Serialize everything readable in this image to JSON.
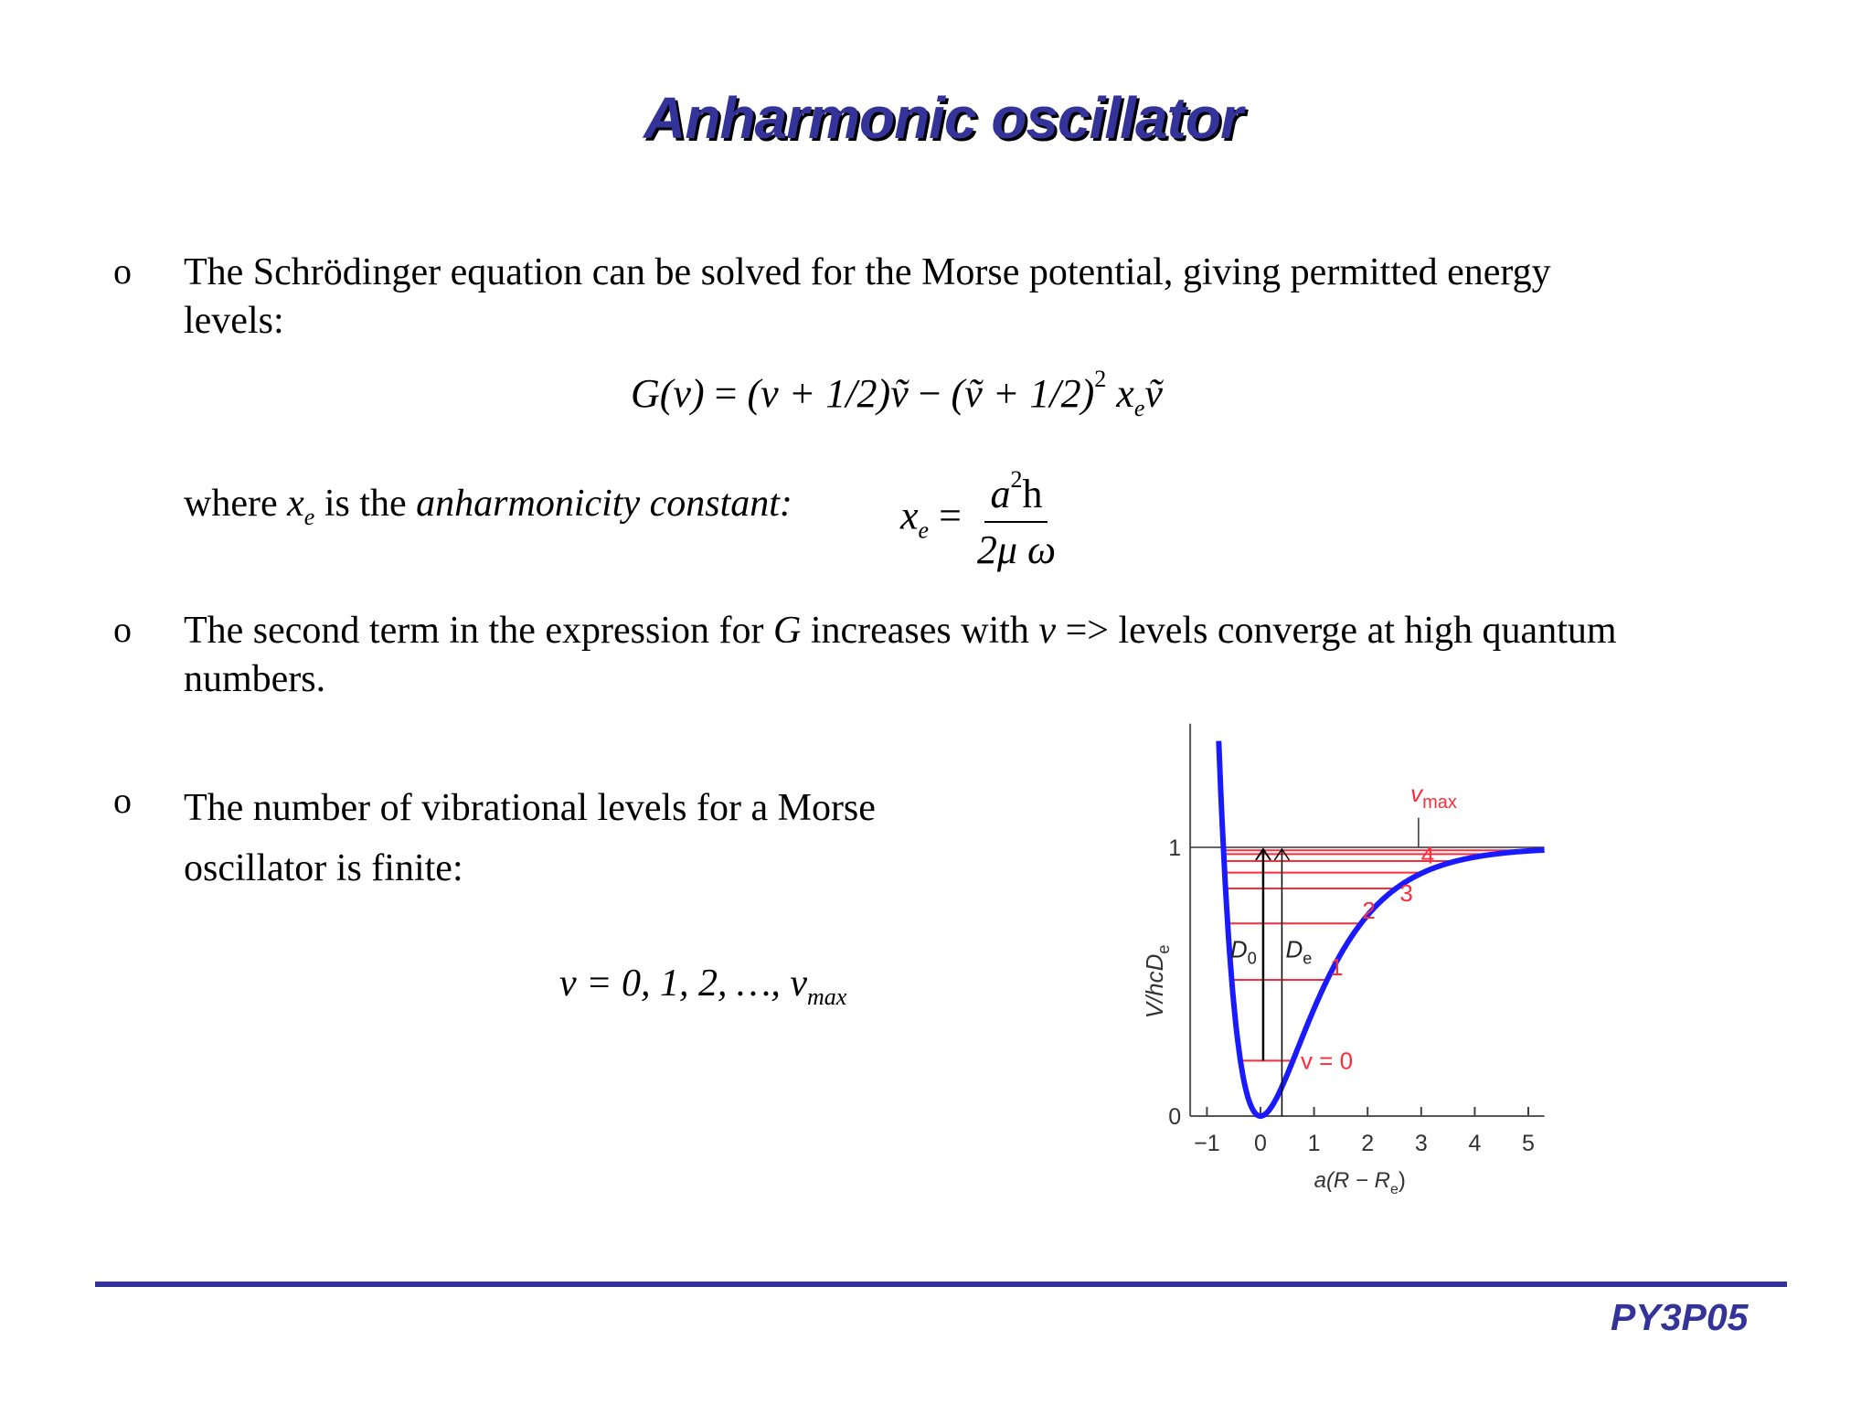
{
  "slide": {
    "title": "Anharmonic oscillator",
    "footer_code": "PY3P05",
    "accent_color": "#333399",
    "bullet_glyph": "o"
  },
  "bullets": [
    {
      "line1": "The Schrödinger equation can be solved for the Morse potential, giving permitted energy",
      "line2": "levels:"
    },
    {
      "pre": "The second term in the expression for ",
      "G": "G",
      "mid": " increases with ",
      "v": "v",
      "post": " => levels converge at high quantum",
      "line2": "numbers."
    },
    {
      "line1": "The number of vibrational levels for a Morse",
      "line2": "oscillator is finite:"
    }
  ],
  "equation_G": {
    "lhs": "G(v)",
    "eq": " = ",
    "t1": "(v + 1/2)",
    "nu": "ṽ",
    "minus": " − ",
    "t2": "(ṽ + 1/2)",
    "sq": "2",
    "x": "x",
    "e": "e"
  },
  "where_line": {
    "pre": "where ",
    "x": "x",
    "e": "e",
    "mid": " is the ",
    "term": "anharmonicity constant:"
  },
  "fraction": {
    "lhs_x": "x",
    "lhs_e": "e",
    "eq": "=",
    "num_a": "a",
    "num_sq": "2",
    "num_h": "h",
    "den": "2μ ω"
  },
  "levels_eq": {
    "text": "v = 0, 1, 2, …, v",
    "sub": "max"
  },
  "chart_data": {
    "type": "line",
    "xlabel": "a(R − R",
    "xlabel_sub": "e",
    "xlabel_end": ")",
    "ylabel": "V/hcD",
    "ylabel_sub": "e",
    "x_ticks": [
      "−1",
      "0",
      "1",
      "2",
      "3",
      "4",
      "5"
    ],
    "x_tick_values": [
      -1,
      0,
      1,
      2,
      3,
      4,
      5
    ],
    "y_ticks": [
      "0",
      "1"
    ],
    "y_tick_values": [
      0,
      1
    ],
    "xlim": [
      -1.5,
      5.3
    ],
    "ylim": [
      0,
      1.5
    ],
    "curve": "Morse potential V = (1 − e^(−x))^2",
    "curve_color": "#1a1aff",
    "level_color": "#ff2a3a",
    "levels": [
      0.206,
      0.507,
      0.717,
      0.847,
      0.906,
      0.949,
      0.975,
      0.989
    ],
    "level_labels": [
      {
        "text": "v = 0",
        "level": 0
      },
      {
        "text": "1",
        "level": 1
      },
      {
        "text": "2",
        "level": 2
      },
      {
        "text": "3",
        "level": 3
      },
      {
        "text": "4",
        "level": 4
      }
    ],
    "vmax_label": "v",
    "vmax_sub": "max",
    "D0_label": "D",
    "D0_sub": "0",
    "De_label": "D",
    "De_sub": "e"
  }
}
